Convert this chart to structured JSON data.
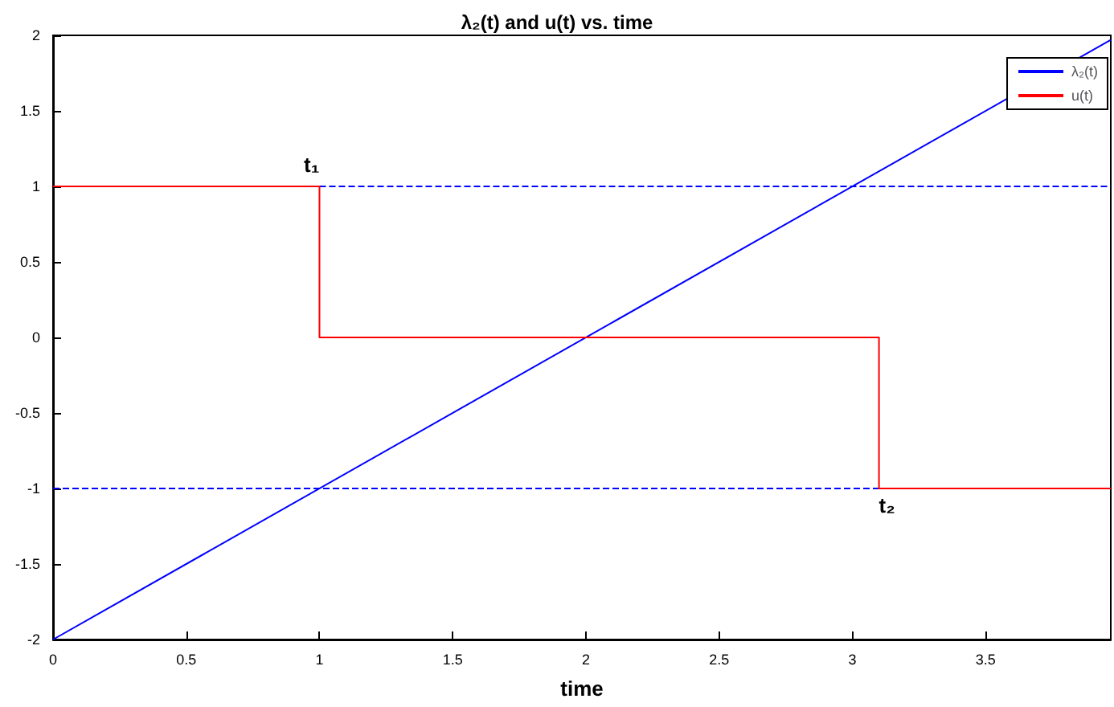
{
  "chart_data": {
    "type": "line",
    "title": "λ₂(t) and u(t) vs. time",
    "xlabel": "time",
    "xlim": [
      0,
      3.97
    ],
    "xticks": [
      0,
      0.5,
      1,
      1.5,
      2,
      2.5,
      3,
      3.5
    ],
    "ylim": [
      -2,
      2
    ],
    "yticks": [
      -2,
      -1.5,
      -1,
      -0.5,
      0,
      0.5,
      1,
      1.5,
      2
    ],
    "grid": false,
    "legend": "top right",
    "marker": "none",
    "series": [
      {
        "name": "λ₂(t)",
        "color": "#0000ff",
        "x": [
          0,
          3.97
        ],
        "values": [
          -2,
          1.97
        ],
        "line_style": "solid"
      },
      {
        "name": "u(t)",
        "type": "step",
        "color": "#ff0000",
        "x": [
          0,
          1,
          3.1,
          3.97
        ],
        "values": [
          1,
          0,
          -1,
          -1
        ],
        "line_style": "solid"
      },
      {
        "color": "#0000ff",
        "x": [
          1,
          3.97
        ],
        "values": [
          1,
          1
        ],
        "line_style": "dashed"
      },
      {
        "color": "#0000ff",
        "x": [
          0,
          3.1
        ],
        "values": [
          -1,
          -1
        ],
        "line_style": "dashed"
      }
    ],
    "annotations": [
      {
        "text": "t₁",
        "x": 1,
        "y": 1
      },
      {
        "text": "t₂",
        "x": 3.1,
        "y": -1
      }
    ]
  }
}
